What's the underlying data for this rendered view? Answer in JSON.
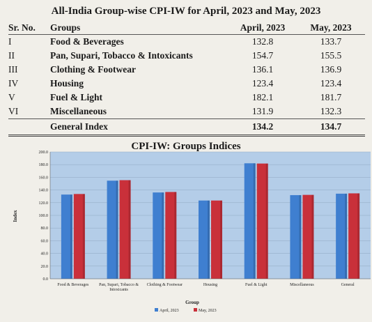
{
  "table": {
    "title": "All-India Group-wise CPI-IW for April, 2023 and May, 2023",
    "headers": {
      "sr": "Sr. No.",
      "group": "Groups",
      "april": "April, 2023",
      "may": "May, 2023"
    },
    "rows": [
      {
        "sr": "I",
        "group": "Food & Beverages",
        "april": "132.8",
        "may": "133.7"
      },
      {
        "sr": "II",
        "group": "Pan, Supari, Tobacco & Intoxicants",
        "april": "154.7",
        "may": "155.5"
      },
      {
        "sr": "III",
        "group": "Clothing & Footwear",
        "april": "136.1",
        "may": "136.9"
      },
      {
        "sr": "IV",
        "group": "Housing",
        "april": "123.4",
        "may": "123.4"
      },
      {
        "sr": "V",
        "group": "Fuel & Light",
        "april": "182.1",
        "may": "181.7"
      },
      {
        "sr": "VI",
        "group": "Miscellaneous",
        "april": "131.9",
        "may": "132.3"
      }
    ],
    "total": {
      "label": "General Index",
      "april": "134.2",
      "may": "134.7"
    }
  },
  "chart_data": {
    "type": "bar",
    "title": "CPI-IW: Groups Indices",
    "xlabel": "Group",
    "ylabel": "Index",
    "ylim": [
      0,
      200
    ],
    "yticks": [
      "0.0",
      "20.0",
      "40.0",
      "60.0",
      "80.0",
      "100.0",
      "120.0",
      "140.0",
      "160.0",
      "180.0",
      "200.0"
    ],
    "categories": [
      "Food & Beverages",
      "Pan, Supari, Tobacco & Intoxicants",
      "Clothing & Footwear",
      "Housing",
      "Fuel & Light",
      "Miscellaneous",
      "General"
    ],
    "series": [
      {
        "name": "April, 2023",
        "values": [
          132.8,
          154.7,
          136.1,
          123.4,
          182.1,
          131.9,
          134.2
        ]
      },
      {
        "name": "May, 2023",
        "values": [
          133.7,
          155.5,
          136.9,
          123.4,
          181.7,
          132.3,
          134.7
        ]
      }
    ],
    "colors": {
      "april": "#3f7fd0",
      "may": "#c9303a",
      "plot_bg": "#b4cde8",
      "grid": "#8fa7c2"
    },
    "grid": true,
    "legend_position": "bottom"
  }
}
